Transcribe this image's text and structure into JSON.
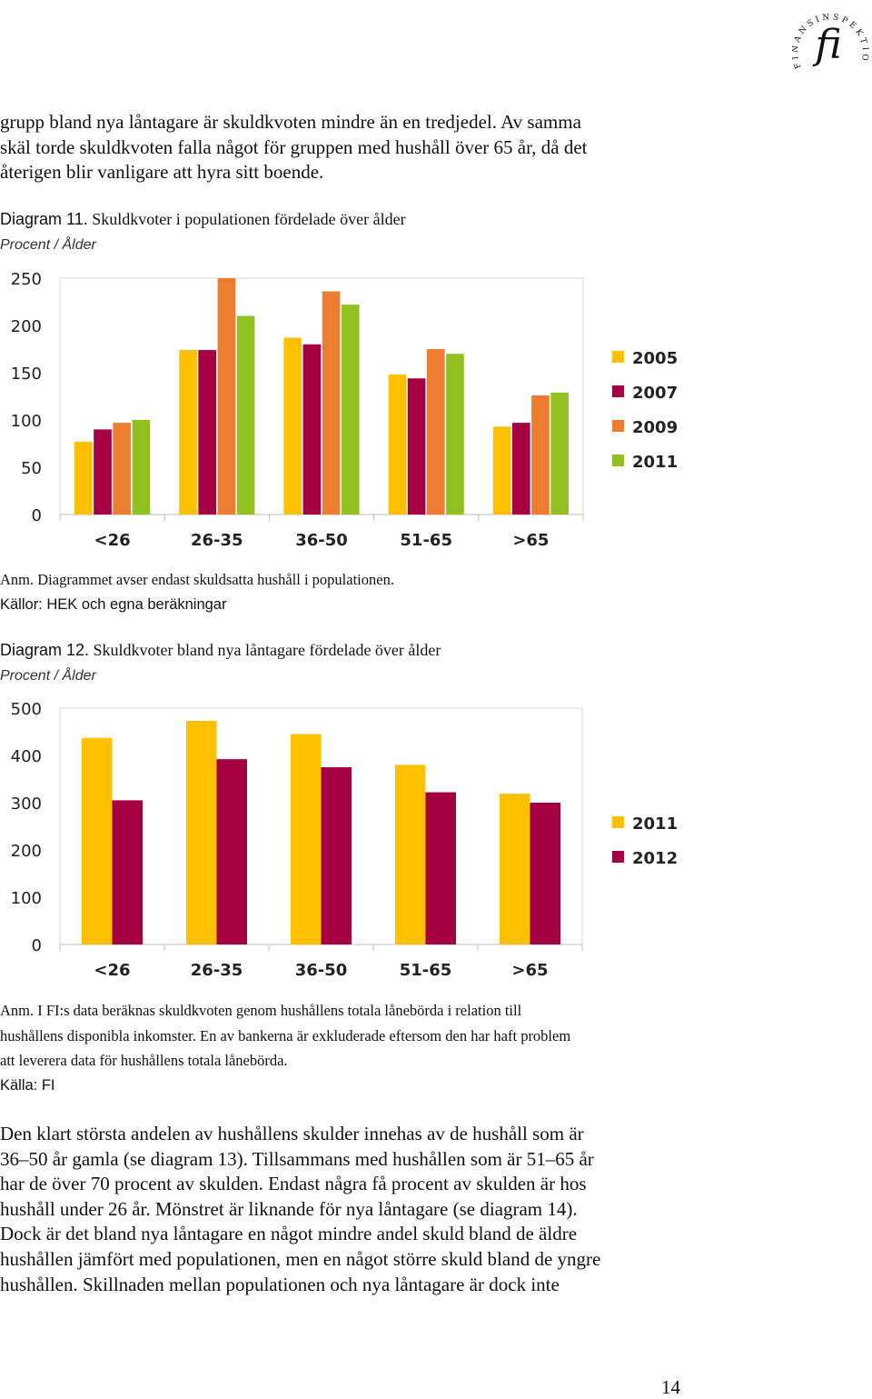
{
  "header": {
    "logo_letters": "FINANSINSPEKTIONEN",
    "logo_mark": "fi"
  },
  "intro_lines": [
    "grupp bland nya låntagare är skuldkvoten mindre än en tredjedel. Av samma",
    "skäl torde skuldkvoten falla något för gruppen med hushåll över 65 år, då det",
    "återigen blir vanligare att hyra sitt boende."
  ],
  "diagram11": {
    "title_prefix": "Diagram 11.",
    "title_text": " Skuldkvoter i populationen fördelade över ålder",
    "unit": "Procent / Ålder",
    "note": "Anm. Diagrammet avser endast skuldsatta hushåll i populationen.",
    "source": "Källor: HEK och egna beräkningar"
  },
  "diagram12": {
    "title_prefix": "Diagram 12.",
    "title_text": " Skuldkvoter bland nya låntagare fördelade över ålder",
    "unit": "Procent / Ålder",
    "note_lines": [
      "Anm. I FI:s data beräknas skuldkvoten genom hushållens totala lånebörda i relation till",
      "hushållens disponibla inkomster. En av bankerna är exkluderade eftersom den har haft problem",
      "att leverera data för hushållens totala lånebörda."
    ],
    "source": "Källa: FI"
  },
  "body_lines": [
    "Den klart största andelen av hushållens skulder innehas av de hushåll som är",
    "36–50 år gamla (se diagram 13). Tillsammans med hushållen som är 51–65 år",
    "har de över 70 procent av skulden. Endast några få procent av skulden är hos",
    "hushåll under 26 år. Mönstret är liknande för nya låntagare (se diagram 14).",
    "Dock är det bland nya låntagare en något mindre andel skuld bland de äldre",
    "hushållen jämfört med populationen, men en något större skuld bland de yngre",
    "hushållen. Skillnaden mellan populationen och nya låntagare är dock inte"
  ],
  "page_number": "14",
  "chart_data": [
    {
      "type": "bar",
      "categories": [
        "<26",
        "26-35",
        "36-50",
        "51-65",
        ">65"
      ],
      "series": [
        {
          "name": "2005",
          "color": "#FFC000",
          "values": [
            77,
            174,
            187,
            148,
            93
          ]
        },
        {
          "name": "2007",
          "color": "#A50044",
          "values": [
            90,
            174,
            180,
            144,
            97
          ]
        },
        {
          "name": "2009",
          "color": "#ED7D31",
          "values": [
            97,
            250,
            236,
            175,
            126
          ]
        },
        {
          "name": "2011",
          "color": "#92C020",
          "values": [
            100,
            210,
            222,
            170,
            129
          ]
        }
      ],
      "ylim": [
        0,
        250
      ],
      "yticks": [
        0,
        50,
        100,
        150,
        200,
        250
      ],
      "grid": false,
      "legend": "right"
    },
    {
      "type": "bar",
      "categories": [
        "<26",
        "26-35",
        "36-50",
        "51-65",
        ">65"
      ],
      "series": [
        {
          "name": "2011",
          "color": "#FFC000",
          "values": [
            437,
            473,
            445,
            380,
            319
          ]
        },
        {
          "name": "2012",
          "color": "#A50044",
          "values": [
            305,
            392,
            375,
            322,
            300
          ]
        }
      ],
      "ylim": [
        0,
        500
      ],
      "yticks": [
        0,
        100,
        200,
        300,
        400,
        500
      ],
      "grid": false,
      "legend": "right"
    }
  ]
}
